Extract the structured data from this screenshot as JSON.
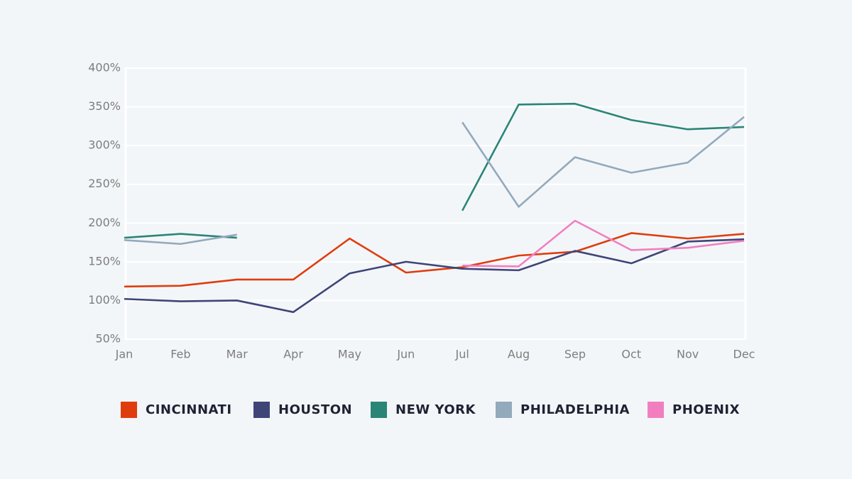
{
  "chart_data": {
    "type": "line",
    "categories": [
      "Jan",
      "Feb",
      "Mar",
      "Apr",
      "May",
      "Jun",
      "Jul",
      "Aug",
      "Sep",
      "Oct",
      "Nov",
      "Dec"
    ],
    "ylim": [
      50,
      400
    ],
    "yticks": [
      {
        "value": 50,
        "label": "50%"
      },
      {
        "value": 100,
        "label": "100%"
      },
      {
        "value": 150,
        "label": "150%"
      },
      {
        "value": 200,
        "label": "200%"
      },
      {
        "value": 250,
        "label": "250%"
      },
      {
        "value": 300,
        "label": "300%"
      },
      {
        "value": 350,
        "label": "350%"
      },
      {
        "value": 400,
        "label": "400%"
      }
    ],
    "grid": true,
    "legend": "bottom",
    "series": [
      {
        "name": "CINCINNATI",
        "color": "#e03d0e",
        "values": [
          118,
          119,
          127,
          127,
          180,
          136,
          143,
          158,
          163,
          187,
          180,
          186
        ]
      },
      {
        "name": "HOUSTON",
        "color": "#3f4577",
        "values": [
          102,
          99,
          100,
          85,
          135,
          150,
          141,
          139,
          164,
          148,
          176,
          179
        ]
      },
      {
        "name": "NEW YORK",
        "color": "#2a8577",
        "values": [
          181,
          186,
          181,
          null,
          null,
          null,
          216,
          353,
          354,
          333,
          321,
          324
        ]
      },
      {
        "name": "PHILADELPHIA",
        "color": "#93a9bc",
        "values": [
          178,
          173,
          185,
          null,
          null,
          null,
          330,
          221,
          285,
          265,
          278,
          337
        ]
      },
      {
        "name": "PHOENIX",
        "color": "#f17fc0",
        "values": [
          null,
          null,
          null,
          null,
          null,
          null,
          145,
          144,
          203,
          165,
          168,
          177
        ]
      }
    ]
  }
}
